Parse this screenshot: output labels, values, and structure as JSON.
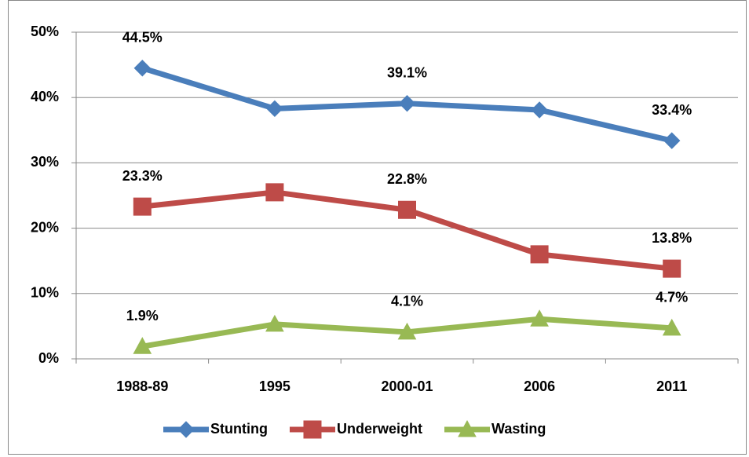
{
  "chart_data": {
    "type": "line",
    "categories": [
      "1988-89",
      "1995",
      "2000-01",
      "2006",
      "2011"
    ],
    "series": [
      {
        "name": "Stunting",
        "color": "#4a7ebb",
        "marker": "diamond",
        "values": [
          44.5,
          38.3,
          39.1,
          38.1,
          33.4
        ],
        "value_labels": [
          "44.5%",
          null,
          "39.1%",
          null,
          "33.4%"
        ]
      },
      {
        "name": "Underweight",
        "color": "#be4b48",
        "marker": "square",
        "values": [
          23.3,
          25.5,
          22.8,
          16.0,
          13.8
        ],
        "value_labels": [
          "23.3%",
          null,
          "22.8%",
          null,
          "13.8%"
        ]
      },
      {
        "name": "Wasting",
        "color": "#98b954",
        "marker": "triangle",
        "values": [
          1.9,
          5.3,
          4.1,
          6.1,
          4.7
        ],
        "value_labels": [
          "1.9%",
          null,
          "4.1%",
          null,
          "4.7%"
        ]
      }
    ],
    "ylim": [
      0,
      50
    ],
    "yticks": [
      {
        "value": 0,
        "label": "0%"
      },
      {
        "value": 10,
        "label": "10%"
      },
      {
        "value": 20,
        "label": "20%"
      },
      {
        "value": 30,
        "label": "30%"
      },
      {
        "value": 40,
        "label": "40%"
      },
      {
        "value": 50,
        "label": "50%"
      }
    ],
    "grid": true,
    "legend": "bottom"
  }
}
